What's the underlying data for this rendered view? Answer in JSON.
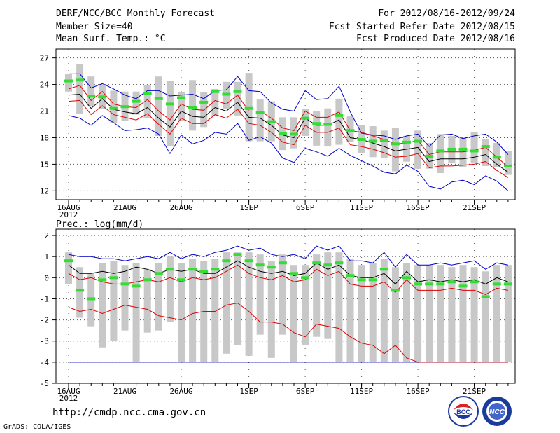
{
  "header": {
    "title": "DERF/NCC/BCC Monthly Forecast",
    "member_size": "Member Size=40",
    "variable": "Mean Surf. Temp.: °C",
    "period": "For 2012/08/16-2012/09/24",
    "started": "Fcst Started Refer Date 2012/08/15",
    "produced": "Fcst Produced Date 2012/08/16"
  },
  "footer": {
    "url": "http://cmdp.ncc.cma.gov.cn",
    "credit": "GrADS: COLA/IGES",
    "logo_left_text": "BCC",
    "logo_right_text": "NCC"
  },
  "colors": {
    "envelope": "#0000cc",
    "spread": "#e00000",
    "mean": "#000000",
    "box": "#c8c8c8",
    "median": "#33dd33"
  },
  "chart_data": [
    {
      "type": "box",
      "title": "Mean Surf. Temp.: °C",
      "ylim": [
        11,
        28
      ],
      "yticks": [
        12,
        15,
        18,
        21,
        24,
        27
      ],
      "xticks": [
        {
          "day": 0,
          "label": "16AUG",
          "sub": "2012"
        },
        {
          "day": 5,
          "label": "21AUG"
        },
        {
          "day": 10,
          "label": "26AUG"
        },
        {
          "day": 16,
          "label": "1SEP"
        },
        {
          "day": 21,
          "label": "6SEP"
        },
        {
          "day": 26,
          "label": "11SEP"
        },
        {
          "day": 31,
          "label": "16SEP"
        },
        {
          "day": 36,
          "label": "21SEP"
        }
      ],
      "days": 40,
      "median": [
        24.4,
        24.5,
        22.7,
        22.6,
        21.3,
        21.5,
        22.1,
        23.0,
        22.4,
        21.8,
        22.5,
        21.4,
        22.0,
        23.2,
        22.9,
        23.2,
        21.3,
        20.8,
        19.8,
        18.5,
        18.4,
        20.2,
        19.6,
        19.5,
        20.5,
        18.8,
        17.8,
        17.6,
        17.7,
        17.3,
        17.5,
        17.6,
        15.9,
        16.5,
        16.7,
        16.7,
        16.5,
        17.0,
        15.8,
        14.8
      ],
      "box_top": [
        25.2,
        26.3,
        24.9,
        24.0,
        23.3,
        23.2,
        23.2,
        23.9,
        24.9,
        24.4,
        23.1,
        24.5,
        23.1,
        23.5,
        24.3,
        24.3,
        25.3,
        22.3,
        22.1,
        20.3,
        20.3,
        21.2,
        21.0,
        21.3,
        22.4,
        20.4,
        19.4,
        19.3,
        18.8,
        19.1,
        18.2,
        18.8,
        17.4,
        18.4,
        18.2,
        18.0,
        18.6,
        17.8,
        17.4,
        16.5
      ],
      "box_bot": [
        23.2,
        20.7,
        21.6,
        21.2,
        19.7,
        19.9,
        20.6,
        20.2,
        18.2,
        17.0,
        19.9,
        18.8,
        19.2,
        20.5,
        21.2,
        20.5,
        17.6,
        17.6,
        17.6,
        16.6,
        16.8,
        18.2,
        17.1,
        17.0,
        17.2,
        17.5,
        16.3,
        15.8,
        15.7,
        14.2,
        15.3,
        14.5,
        14.5,
        14.0,
        15.1,
        14.7,
        15.1,
        14.8,
        14.7,
        13.8
      ],
      "mean": [
        22.8,
        22.9,
        21.3,
        22.4,
        21.2,
        20.9,
        20.7,
        21.4,
        20.2,
        19.2,
        21.0,
        20.4,
        20.3,
        21.4,
        21.0,
        22.0,
        20.3,
        20.2,
        19.4,
        18.3,
        18.0,
        20.2,
        19.4,
        19.4,
        20.0,
        18.0,
        17.8,
        17.4,
        17.0,
        16.5,
        16.7,
        16.9,
        15.3,
        15.6,
        15.6,
        15.6,
        15.8,
        16.1,
        15.0,
        14.1
      ],
      "spread_upper": [
        23.5,
        23.9,
        22.2,
        23.2,
        21.8,
        21.5,
        21.4,
        22.3,
        21.0,
        20.0,
        21.8,
        21.2,
        21.1,
        22.2,
        21.8,
        22.8,
        21.0,
        21.0,
        20.2,
        19.1,
        18.8,
        21.0,
        20.3,
        20.3,
        20.9,
        18.8,
        18.6,
        18.2,
        17.8,
        17.3,
        17.4,
        17.7,
        16.1,
        16.4,
        16.4,
        16.4,
        16.6,
        16.9,
        15.8,
        14.7
      ],
      "spread_lower": [
        22.1,
        22.2,
        20.6,
        21.6,
        20.6,
        20.3,
        20.0,
        20.7,
        19.5,
        18.4,
        20.2,
        19.6,
        19.6,
        20.6,
        20.2,
        21.2,
        19.6,
        19.4,
        18.6,
        17.5,
        17.2,
        19.4,
        18.6,
        18.6,
        19.1,
        17.2,
        17.0,
        16.7,
        16.3,
        15.8,
        15.9,
        16.2,
        14.6,
        14.8,
        14.8,
        14.9,
        15.0,
        15.3,
        14.3,
        13.5
      ],
      "envelope_max": [
        25.2,
        25.2,
        23.6,
        24.1,
        23.5,
        22.8,
        22.4,
        23.3,
        23.3,
        22.7,
        22.8,
        22.9,
        22.4,
        23.3,
        23.4,
        24.9,
        23.3,
        23.2,
        21.9,
        21.2,
        21.0,
        23.3,
        22.3,
        22.4,
        23.8,
        20.9,
        18.5,
        18.3,
        18.2,
        17.8,
        18.2,
        18.4,
        17.0,
        18.3,
        18.4,
        17.9,
        18.2,
        18.4,
        17.5,
        16.1
      ],
      "envelope_min": [
        20.5,
        20.2,
        19.4,
        20.5,
        19.7,
        18.8,
        18.9,
        19.1,
        18.4,
        16.2,
        18.3,
        17.3,
        17.7,
        18.6,
        18.4,
        19.6,
        17.7,
        18.1,
        17.4,
        15.7,
        15.2,
        16.8,
        16.4,
        15.9,
        16.8,
        16.0,
        15.4,
        14.8,
        14.1,
        13.9,
        14.9,
        14.2,
        12.5,
        12.2,
        13.0,
        13.2,
        12.7,
        13.7,
        13.1,
        12.0
      ]
    },
    {
      "type": "box",
      "title": "Prec.: log(mm/d)",
      "ylim": [
        -5,
        2.3
      ],
      "yticks": [
        -5,
        -4,
        -3,
        -2,
        -1,
        0,
        1,
        2
      ],
      "xticks": [
        {
          "day": 0,
          "label": "16AUG",
          "sub": "2012"
        },
        {
          "day": 5,
          "label": "21AUG"
        },
        {
          "day": 10,
          "label": "26AUG"
        },
        {
          "day": 16,
          "label": "1SEP"
        },
        {
          "day": 21,
          "label": "6SEP"
        },
        {
          "day": 26,
          "label": "11SEP"
        },
        {
          "day": 31,
          "label": "16SEP"
        },
        {
          "day": 36,
          "label": "21SEP"
        }
      ],
      "days": 40,
      "median": [
        0.8,
        -0.6,
        -1.0,
        -0.1,
        0.0,
        -0.3,
        -0.4,
        -0.1,
        0.2,
        0.4,
        -0.1,
        0.4,
        0.3,
        0.4,
        0.8,
        1.1,
        0.8,
        0.6,
        0.5,
        0.7,
        0.2,
        0.0,
        0.7,
        0.6,
        0.7,
        0.1,
        -0.1,
        -0.1,
        0.4,
        -0.6,
        0.0,
        -0.3,
        -0.3,
        -0.3,
        -0.2,
        -0.4,
        -0.2,
        -0.9,
        -0.3,
        -0.3
      ],
      "box_top": [
        1.2,
        0.5,
        0.2,
        0.7,
        0.8,
        0.6,
        0.7,
        0.4,
        0.7,
        1.0,
        0.7,
        0.9,
        0.8,
        0.9,
        1.2,
        1.2,
        1.2,
        1.1,
        0.8,
        1.1,
        0.6,
        0.6,
        1.1,
        1.2,
        1.2,
        0.9,
        0.6,
        0.7,
        0.9,
        0.5,
        0.7,
        0.6,
        0.6,
        0.6,
        0.5,
        0.6,
        0.5,
        0.3,
        0.6,
        0.6
      ],
      "box_bot": [
        -0.3,
        -1.9,
        -2.3,
        -3.3,
        -3.0,
        -2.5,
        -4.0,
        -2.6,
        -2.5,
        -2.1,
        -4.0,
        -4.0,
        -4.0,
        -4.0,
        -3.6,
        -3.2,
        -3.7,
        -2.7,
        -3.8,
        -2.7,
        -4.0,
        -3.2,
        -2.8,
        -2.9,
        -4.0,
        -4.0,
        -4.0,
        -4.0,
        -4.0,
        -4.0,
        -4.0,
        -4.0,
        -4.0,
        -4.0,
        -4.0,
        -4.0,
        -4.0,
        -4.0,
        -4.0,
        -4.0
      ],
      "mean": [
        0.6,
        0.2,
        0.2,
        0.3,
        0.2,
        0.3,
        0.5,
        0.4,
        0.2,
        0.4,
        0.3,
        0.4,
        0.2,
        0.2,
        0.5,
        0.8,
        0.5,
        0.3,
        0.2,
        0.3,
        0.1,
        0.2,
        0.7,
        0.4,
        0.6,
        0.1,
        0.0,
        0.0,
        0.2,
        -0.3,
        0.3,
        -0.2,
        -0.1,
        -0.2,
        -0.1,
        -0.2,
        -0.1,
        -0.3,
        0.0,
        -0.2
      ],
      "spread_upper": [
        0.2,
        -0.1,
        0.0,
        -0.2,
        -0.3,
        -0.3,
        -0.2,
        -0.1,
        -0.2,
        0.0,
        -0.2,
        0.0,
        -0.1,
        0.0,
        0.3,
        0.6,
        0.2,
        0.0,
        -0.1,
        0.1,
        -0.2,
        -0.1,
        0.4,
        0.1,
        0.3,
        -0.3,
        -0.4,
        -0.4,
        -0.2,
        -0.7,
        -0.1,
        -0.6,
        -0.6,
        -0.6,
        -0.5,
        -0.6,
        -0.6,
        -0.8,
        -0.5,
        -0.6
      ],
      "spread_lower": [
        -1.4,
        -1.6,
        -1.5,
        -1.7,
        -1.5,
        -1.3,
        -1.4,
        -1.5,
        -1.8,
        -1.9,
        -2.0,
        -1.7,
        -1.6,
        -1.6,
        -1.3,
        -1.2,
        -1.6,
        -2.1,
        -2.1,
        -2.2,
        -2.6,
        -2.8,
        -2.2,
        -2.3,
        -2.4,
        -2.8,
        -3.1,
        -3.2,
        -3.6,
        -3.2,
        -3.8,
        -4.0,
        -4.0,
        -4.0,
        -4.0,
        -4.0,
        -4.0,
        -4.0,
        -4.0,
        -4.0
      ],
      "envelope_max": [
        1.1,
        1.0,
        1.0,
        0.9,
        0.9,
        0.8,
        0.9,
        1.0,
        0.9,
        1.2,
        0.9,
        1.1,
        1.0,
        1.2,
        1.3,
        1.5,
        1.3,
        1.4,
        1.1,
        1.0,
        1.1,
        0.9,
        1.5,
        1.3,
        1.5,
        0.8,
        0.8,
        0.7,
        1.2,
        0.5,
        1.1,
        0.6,
        0.6,
        0.7,
        0.6,
        0.7,
        0.8,
        0.4,
        0.7,
        0.6
      ],
      "envelope_min": [
        -4.0,
        -4.0,
        -4.0,
        -4.0,
        -4.0,
        -4.0,
        -4.0,
        -4.0,
        -4.0,
        -4.0,
        -4.0,
        -4.0,
        -4.0,
        -4.0,
        -4.0,
        -4.0,
        -4.0,
        -4.0,
        -4.0,
        -4.0,
        -4.0,
        -4.0,
        -4.0,
        -4.0,
        -4.0,
        -4.0,
        -4.0,
        -4.0,
        -4.0,
        -4.0,
        -4.0,
        -4.0,
        -4.0,
        -4.0,
        -4.0,
        -4.0,
        -4.0,
        -4.0,
        -4.0,
        -4.0
      ]
    }
  ]
}
